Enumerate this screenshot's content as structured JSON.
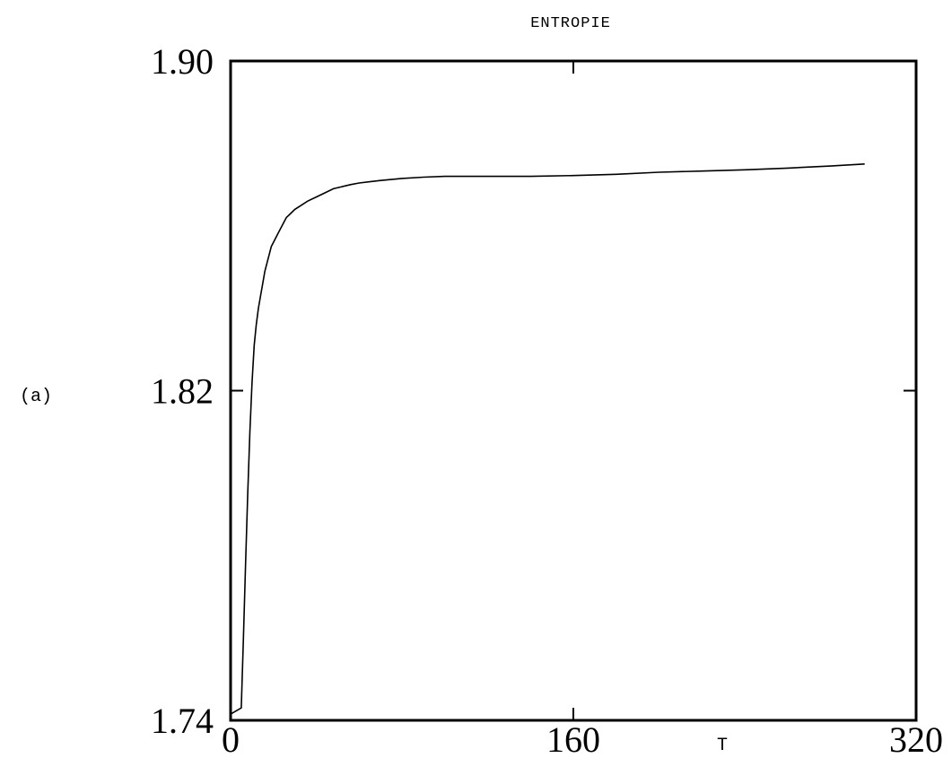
{
  "chart_data": {
    "type": "line",
    "title": "ENTROPIE",
    "panel_label": "(a)",
    "xlabel": "T",
    "ylabel": "",
    "xlim": [
      0,
      320
    ],
    "ylim": [
      1.74,
      1.9
    ],
    "xticks": [
      {
        "value": 0,
        "label": "0"
      },
      {
        "value": 160,
        "label": "160"
      },
      {
        "value": 320,
        "label": "320"
      }
    ],
    "yticks": [
      {
        "value": 1.74,
        "label": "1.74"
      },
      {
        "value": 1.82,
        "label": "1.82"
      },
      {
        "value": 1.9,
        "label": "1.90"
      }
    ],
    "grid": false,
    "legend": "none",
    "series": [
      {
        "x": [
          0,
          5,
          6,
          7,
          8,
          9,
          10,
          11,
          12,
          13,
          14,
          15,
          16,
          17,
          18,
          19,
          20,
          22,
          24,
          26,
          28,
          30,
          33,
          36,
          40,
          44,
          48,
          52,
          56,
          60,
          65,
          70,
          80,
          90,
          100,
          120,
          140,
          160,
          180,
          200,
          220,
          240,
          260,
          280,
          296
        ],
        "y": [
          1.7415,
          1.743,
          1.76,
          1.778,
          1.795,
          1.81,
          1.822,
          1.831,
          1.836,
          1.84,
          1.843,
          1.846,
          1.849,
          1.851,
          1.853,
          1.855,
          1.856,
          1.858,
          1.86,
          1.862,
          1.863,
          1.864,
          1.865,
          1.866,
          1.867,
          1.868,
          1.869,
          1.8695,
          1.87,
          1.8704,
          1.8707,
          1.871,
          1.8715,
          1.8718,
          1.872,
          1.872,
          1.872,
          1.8722,
          1.8725,
          1.873,
          1.8733,
          1.8736,
          1.874,
          1.8745,
          1.875
        ]
      }
    ]
  }
}
